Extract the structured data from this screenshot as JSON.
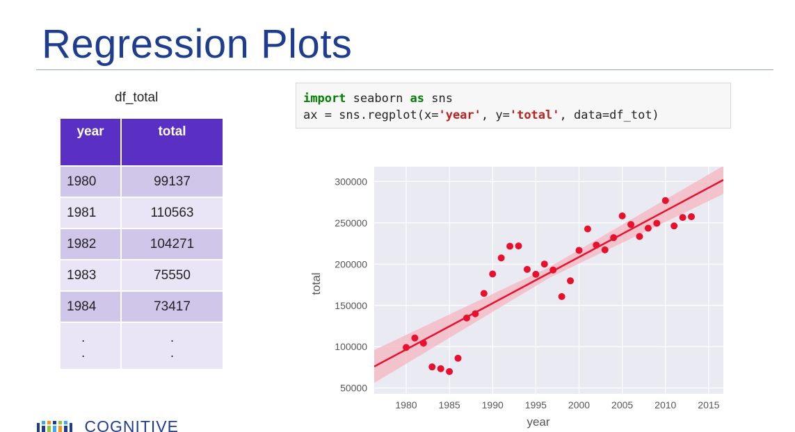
{
  "slide": {
    "title": "Regression Plots"
  },
  "table": {
    "caption": "df_total",
    "headers": [
      "year",
      "total"
    ],
    "rows": [
      [
        "1980",
        "99137"
      ],
      [
        "1981",
        "110563"
      ],
      [
        "1982",
        "104271"
      ],
      [
        "1983",
        "75550"
      ],
      [
        "1984",
        "73417"
      ]
    ],
    "ellipsis": [
      ".",
      ".",
      ".",
      "."
    ]
  },
  "code": {
    "line1": {
      "kw1": "import",
      "mid": " seaborn ",
      "kw2": "as",
      "end": " sns"
    },
    "line2": {
      "a": "ax = sns.regplot(x=",
      "s1": "'year'",
      "b": ", y=",
      "s2": "'total'",
      "c": ", data=df_tot)"
    }
  },
  "logo": {
    "text": "COGNITIVE"
  },
  "colors": {
    "title": "#1f3d8f",
    "header": "#5a2fc4",
    "point": "#e8112d",
    "line": "#e8112d",
    "band": "#f4b6bf",
    "plot_bg": "#eaeaf2"
  },
  "chart_data": {
    "type": "scatter",
    "xlabel": "year",
    "ylabel": "total",
    "xlim": [
      1976.3,
      2016.7
    ],
    "ylim": [
      43000,
      318000
    ],
    "xticks": [
      1980,
      1985,
      1990,
      1995,
      2000,
      2005,
      2010,
      2015
    ],
    "yticks": [
      50000,
      100000,
      150000,
      200000,
      250000,
      300000
    ],
    "grid": true,
    "points": [
      [
        1980,
        99137
      ],
      [
        1981,
        110563
      ],
      [
        1982,
        104271
      ],
      [
        1983,
        75550
      ],
      [
        1984,
        73417
      ],
      [
        1985,
        69939
      ],
      [
        1986,
        86048
      ],
      [
        1987,
        134771
      ],
      [
        1988,
        139951
      ],
      [
        1989,
        164500
      ],
      [
        1990,
        188054
      ],
      [
        1991,
        207509
      ],
      [
        1992,
        221687
      ],
      [
        1993,
        222049
      ],
      [
        1994,
        193665
      ],
      [
        1995,
        187712
      ],
      [
        1996,
        200085
      ],
      [
        1997,
        192885
      ],
      [
        1998,
        160727
      ],
      [
        1999,
        179818
      ],
      [
        2000,
        216712
      ],
      [
        2001,
        242643
      ],
      [
        2002,
        223111
      ],
      [
        2003,
        217297
      ],
      [
        2004,
        232083
      ],
      [
        2005,
        258373
      ],
      [
        2006,
        247975
      ],
      [
        2007,
        233491
      ],
      [
        2008,
        243490
      ],
      [
        2009,
        249490
      ],
      [
        2010,
        277000
      ],
      [
        2011,
        246260
      ],
      [
        2012,
        256500
      ],
      [
        2013,
        257500
      ]
    ],
    "regression": {
      "x": [
        1976.3,
        2016.7
      ],
      "y": [
        76000,
        302000
      ]
    },
    "band": {
      "upper": [
        [
          1976.3,
          96000
        ],
        [
          1996.5,
          196000
        ],
        [
          2016.7,
          319000
        ]
      ],
      "lower": [
        [
          1976.3,
          56000
        ],
        [
          1996.5,
          183000
        ],
        [
          2016.7,
          285000
        ]
      ]
    }
  }
}
